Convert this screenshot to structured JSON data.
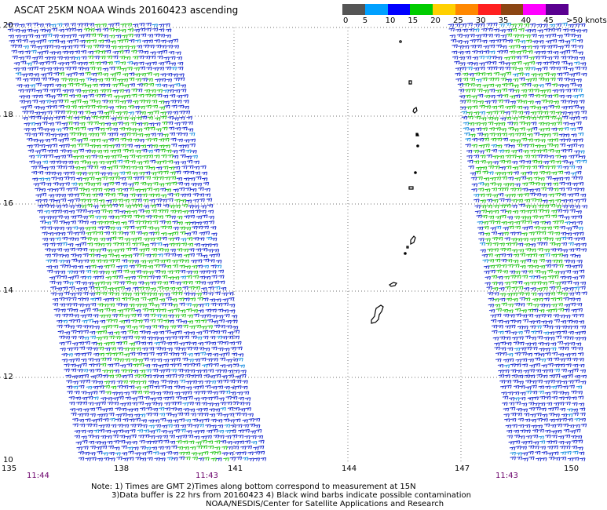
{
  "title": "ASCAT 25KM NOAA Winds 20160423 ascending",
  "scale": {
    "colors": [
      "#555555",
      "#00a0ff",
      "#0000ff",
      "#00cc00",
      "#ffd000",
      "#ff8800",
      "#ff2020",
      "#8b4513",
      "#ff00ff",
      "#5a0090"
    ],
    "labels": [
      "0",
      "5",
      "10",
      "15",
      "20",
      "25",
      "30",
      "35",
      "40",
      "45",
      ">50 knots"
    ]
  },
  "axes": {
    "lat_labels": [
      "20",
      "18",
      "16",
      "14",
      "12",
      "10"
    ],
    "lon_labels": [
      "135",
      "138",
      "141",
      "144",
      "147",
      "150"
    ]
  },
  "times": [
    "11:44",
    "11:43",
    "11:43"
  ],
  "notes": [
    "Note: 1) Times are GMT 2)Times along bottom correspond to measurement at 15N",
    "3)Data buffer is 22 hrs from 20160423 4) Black wind barbs indicate possible contamination",
    "NOAA/NESDIS/Center for Satellite Applications and Research"
  ]
}
